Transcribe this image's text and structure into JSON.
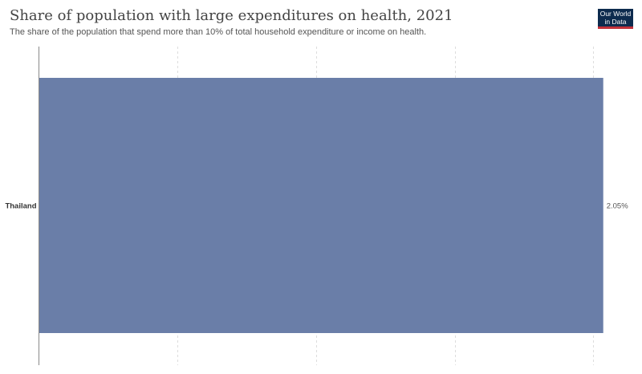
{
  "header": {
    "title": "Share of population with large expenditures on health, 2021",
    "subtitle": "The share of the population that spend more than 10% of total household expenditure or income on health."
  },
  "logo": {
    "line1": "Our World",
    "line2": "in Data",
    "background": "#0d2b4e",
    "accent": "#c2313a"
  },
  "chart_data": {
    "type": "bar",
    "orientation": "horizontal",
    "title": "Share of population with large expenditures on health, 2021",
    "subtitle": "The share of the population that spend more than 10% of total household expenditure or income on health.",
    "categories": [
      "Thailand"
    ],
    "values": [
      2.05
    ],
    "value_labels": [
      "2.05%"
    ],
    "unit": "%",
    "xlim": [
      0,
      2.0625
    ],
    "grid": "vertical dashed",
    "bar_color": "#6a7ea8"
  }
}
